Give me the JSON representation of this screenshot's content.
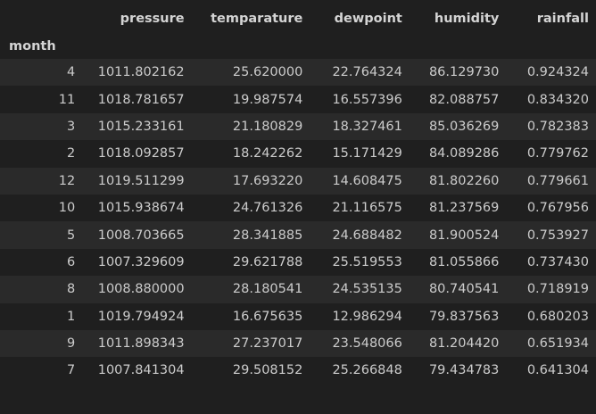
{
  "dataframe": {
    "index_name": "month",
    "columns": [
      "pressure",
      "temparature",
      "dewpoint",
      "humidity",
      "rainfall"
    ],
    "rows": [
      {
        "index": "4",
        "cells": [
          "1011.802162",
          "25.620000",
          "22.764324",
          "86.129730",
          "0.924324"
        ]
      },
      {
        "index": "11",
        "cells": [
          "1018.781657",
          "19.987574",
          "16.557396",
          "82.088757",
          "0.834320"
        ]
      },
      {
        "index": "3",
        "cells": [
          "1015.233161",
          "21.180829",
          "18.327461",
          "85.036269",
          "0.782383"
        ]
      },
      {
        "index": "2",
        "cells": [
          "1018.092857",
          "18.242262",
          "15.171429",
          "84.089286",
          "0.779762"
        ]
      },
      {
        "index": "12",
        "cells": [
          "1019.511299",
          "17.693220",
          "14.608475",
          "81.802260",
          "0.779661"
        ]
      },
      {
        "index": "10",
        "cells": [
          "1015.938674",
          "24.761326",
          "21.116575",
          "81.237569",
          "0.767956"
        ]
      },
      {
        "index": "5",
        "cells": [
          "1008.703665",
          "28.341885",
          "24.688482",
          "81.900524",
          "0.753927"
        ]
      },
      {
        "index": "6",
        "cells": [
          "1007.329609",
          "29.621788",
          "25.519553",
          "81.055866",
          "0.737430"
        ]
      },
      {
        "index": "8",
        "cells": [
          "1008.880000",
          "28.180541",
          "24.535135",
          "80.740541",
          "0.718919"
        ]
      },
      {
        "index": "1",
        "cells": [
          "1019.794924",
          "16.675635",
          "12.986294",
          "79.837563",
          "0.680203"
        ]
      },
      {
        "index": "9",
        "cells": [
          "1011.898343",
          "27.237017",
          "23.548066",
          "81.204420",
          "0.651934"
        ]
      },
      {
        "index": "7",
        "cells": [
          "1007.841304",
          "29.508152",
          "25.266848",
          "79.434783",
          "0.641304"
        ]
      }
    ]
  }
}
